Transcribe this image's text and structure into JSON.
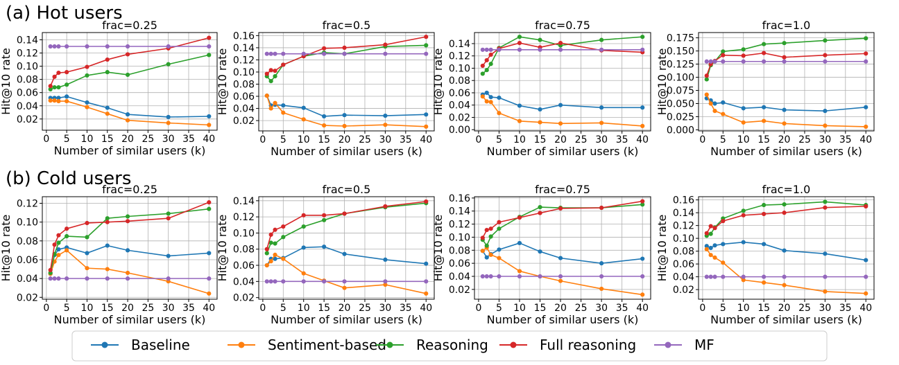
{
  "sections": [
    {
      "title": "(a) Hot users"
    },
    {
      "title": "(b) Cold users"
    }
  ],
  "series_colors": {
    "Baseline": "#1f77b4",
    "Sentiment-based": "#ff7f0e",
    "Reasoning": "#2ca02c",
    "Full reasoning": "#d62728",
    "MF": "#9467bd"
  },
  "legend": {
    "items": [
      {
        "name": "Baseline",
        "color": "#1f77b4"
      },
      {
        "name": "Sentiment-based",
        "color": "#ff7f0e"
      },
      {
        "name": "Reasoning",
        "color": "#2ca02c"
      },
      {
        "name": "Full reasoning",
        "color": "#d62728"
      },
      {
        "name": "MF",
        "color": "#9467bd"
      }
    ]
  },
  "chart_data": [
    {
      "type": "line",
      "group": "hot",
      "title": "frac=0.25",
      "xlabel": "Number of similar users (k)",
      "ylabel": "Hit@10 rate",
      "x": [
        1,
        2,
        3,
        5,
        10,
        15,
        20,
        30,
        40
      ],
      "xlim": [
        -1,
        42
      ],
      "xticks": [
        0,
        5,
        10,
        15,
        20,
        25,
        30,
        35,
        40
      ],
      "ylim": [
        0.003,
        0.151
      ],
      "yticks": [
        0.02,
        0.04,
        0.06,
        0.08,
        0.1,
        0.12,
        0.14
      ],
      "ytick_labels": [
        "0.02",
        "0.04",
        "0.06",
        "0.08",
        "0.10",
        "0.12",
        "0.14"
      ],
      "series": [
        {
          "name": "Baseline",
          "values": [
            0.052,
            0.052,
            0.052,
            0.054,
            0.045,
            0.037,
            0.027,
            0.023,
            0.024
          ]
        },
        {
          "name": "Sentiment-based",
          "values": [
            0.048,
            0.048,
            0.047,
            0.047,
            0.038,
            0.028,
            0.018,
            0.014,
            0.011
          ]
        },
        {
          "name": "Reasoning",
          "values": [
            0.065,
            0.068,
            0.068,
            0.072,
            0.086,
            0.091,
            0.087,
            0.103,
            0.117
          ]
        },
        {
          "name": "Full reasoning",
          "values": [
            0.07,
            0.084,
            0.09,
            0.091,
            0.099,
            0.11,
            0.118,
            0.127,
            0.143
          ]
        },
        {
          "name": "MF",
          "values": [
            0.13,
            0.13,
            0.13,
            0.13,
            0.13,
            0.13,
            0.13,
            0.13,
            0.13
          ]
        }
      ]
    },
    {
      "type": "line",
      "group": "hot",
      "title": "frac=0.5",
      "xlabel": "Number of similar users (k)",
      "ylabel": "Hit@10 rate",
      "x": [
        1,
        2,
        3,
        5,
        10,
        15,
        20,
        30,
        40
      ],
      "xlim": [
        -1,
        42
      ],
      "xticks": [
        0,
        5,
        10,
        15,
        20,
        25,
        30,
        35,
        40
      ],
      "ylim": [
        0.003,
        0.165
      ],
      "yticks": [
        0.02,
        0.04,
        0.06,
        0.08,
        0.1,
        0.12,
        0.14,
        0.16
      ],
      "ytick_labels": [
        "0.02",
        "0.04",
        "0.06",
        "0.08",
        "0.10",
        "0.12",
        "0.14",
        "0.16"
      ],
      "series": [
        {
          "name": "Baseline",
          "values": [
            0.061,
            0.045,
            0.046,
            0.045,
            0.041,
            0.027,
            0.029,
            0.028,
            0.03
          ]
        },
        {
          "name": "Sentiment-based",
          "values": [
            0.061,
            0.04,
            0.049,
            0.033,
            0.022,
            0.012,
            0.011,
            0.013,
            0.01
          ]
        },
        {
          "name": "Reasoning",
          "values": [
            0.093,
            0.085,
            0.093,
            0.112,
            0.126,
            0.132,
            0.13,
            0.142,
            0.144
          ]
        },
        {
          "name": "Full reasoning",
          "values": [
            0.097,
            0.103,
            0.102,
            0.112,
            0.126,
            0.139,
            0.14,
            0.145,
            0.158
          ]
        },
        {
          "name": "MF",
          "values": [
            0.13,
            0.13,
            0.13,
            0.13,
            0.13,
            0.13,
            0.13,
            0.13,
            0.13
          ]
        }
      ]
    },
    {
      "type": "line",
      "group": "hot",
      "title": "frac=0.75",
      "xlabel": "Number of similar users (k)",
      "ylabel": "Hit@10 rate",
      "x": [
        1,
        2,
        3,
        5,
        10,
        15,
        20,
        30,
        40
      ],
      "xlim": [
        -1,
        42
      ],
      "xticks": [
        0,
        5,
        10,
        15,
        20,
        25,
        30,
        35,
        40
      ],
      "ylim": [
        -0.002,
        0.158
      ],
      "yticks": [
        0.0,
        0.02,
        0.04,
        0.06,
        0.08,
        0.1,
        0.12,
        0.14
      ],
      "ytick_labels": [
        "0.00",
        "0.02",
        "0.04",
        "0.06",
        "0.08",
        "0.10",
        "0.12",
        "0.14"
      ],
      "series": [
        {
          "name": "Baseline",
          "values": [
            0.057,
            0.06,
            0.053,
            0.052,
            0.039,
            0.033,
            0.04,
            0.036,
            0.036
          ]
        },
        {
          "name": "Sentiment-based",
          "values": [
            0.054,
            0.046,
            0.045,
            0.027,
            0.014,
            0.012,
            0.01,
            0.011,
            0.006
          ]
        },
        {
          "name": "Reasoning",
          "values": [
            0.091,
            0.097,
            0.107,
            0.133,
            0.151,
            0.146,
            0.137,
            0.146,
            0.151
          ]
        },
        {
          "name": "Full reasoning",
          "values": [
            0.104,
            0.113,
            0.122,
            0.132,
            0.141,
            0.134,
            0.141,
            0.129,
            0.126
          ]
        },
        {
          "name": "MF",
          "values": [
            0.13,
            0.13,
            0.13,
            0.13,
            0.13,
            0.13,
            0.13,
            0.13,
            0.13
          ]
        }
      ]
    },
    {
      "type": "line",
      "group": "hot",
      "title": "frac=1.0",
      "xlabel": "Number of similar users (k)",
      "ylabel": "Hit@10 rate",
      "x": [
        1,
        2,
        3,
        5,
        10,
        15,
        20,
        30,
        40
      ],
      "xlim": [
        -1,
        42
      ],
      "xticks": [
        0,
        5,
        10,
        15,
        20,
        25,
        30,
        35,
        40
      ],
      "ylim": [
        -0.002,
        0.185
      ],
      "yticks": [
        0.0,
        0.025,
        0.05,
        0.075,
        0.1,
        0.125,
        0.15,
        0.175
      ],
      "ytick_labels": [
        "0.000",
        "0.025",
        "0.050",
        "0.075",
        "0.100",
        "0.125",
        "0.150",
        "0.175"
      ],
      "series": [
        {
          "name": "Baseline",
          "values": [
            0.06,
            0.056,
            0.05,
            0.052,
            0.041,
            0.043,
            0.038,
            0.036,
            0.043
          ]
        },
        {
          "name": "Sentiment-based",
          "values": [
            0.067,
            0.05,
            0.036,
            0.03,
            0.014,
            0.017,
            0.012,
            0.008,
            0.006
          ]
        },
        {
          "name": "Reasoning",
          "values": [
            0.096,
            0.123,
            0.13,
            0.149,
            0.153,
            0.163,
            0.165,
            0.17,
            0.174
          ]
        },
        {
          "name": "Full reasoning",
          "values": [
            0.103,
            0.125,
            0.131,
            0.142,
            0.141,
            0.146,
            0.138,
            0.142,
            0.145
          ]
        },
        {
          "name": "MF",
          "values": [
            0.13,
            0.13,
            0.13,
            0.13,
            0.13,
            0.13,
            0.13,
            0.13,
            0.13
          ]
        }
      ]
    },
    {
      "type": "line",
      "group": "cold",
      "title": "frac=0.25",
      "xlabel": "Number of similar users (k)",
      "ylabel": "Hit@10 rate",
      "x": [
        1,
        2,
        3,
        5,
        10,
        15,
        20,
        30,
        40
      ],
      "xlim": [
        -1,
        42
      ],
      "xticks": [
        0,
        5,
        10,
        15,
        20,
        25,
        30,
        35,
        40
      ],
      "ylim": [
        0.018,
        0.127
      ],
      "yticks": [
        0.02,
        0.04,
        0.06,
        0.08,
        0.1,
        0.12
      ],
      "ytick_labels": [
        "0.02",
        "0.04",
        "0.06",
        "0.08",
        "0.10",
        "0.12"
      ],
      "series": [
        {
          "name": "Baseline",
          "values": [
            0.045,
            0.065,
            0.071,
            0.073,
            0.067,
            0.075,
            0.07,
            0.064,
            0.067
          ]
        },
        {
          "name": "Sentiment-based",
          "values": [
            0.045,
            0.058,
            0.065,
            0.07,
            0.051,
            0.05,
            0.046,
            0.037,
            0.024
          ]
        },
        {
          "name": "Reasoning",
          "values": [
            0.046,
            0.066,
            0.078,
            0.085,
            0.084,
            0.104,
            0.106,
            0.109,
            0.114
          ]
        },
        {
          "name": "Full reasoning",
          "values": [
            0.049,
            0.076,
            0.086,
            0.093,
            0.099,
            0.1,
            0.101,
            0.104,
            0.121
          ]
        },
        {
          "name": "MF",
          "values": [
            0.04,
            0.04,
            0.04,
            0.04,
            0.04,
            0.04,
            0.04,
            0.04,
            0.04
          ]
        }
      ]
    },
    {
      "type": "line",
      "group": "cold",
      "title": "frac=0.5",
      "xlabel": "Number of similar users (k)",
      "ylabel": "Hit@10 rate",
      "x": [
        1,
        2,
        3,
        5,
        10,
        15,
        20,
        30,
        40
      ],
      "xlim": [
        -1,
        42
      ],
      "xticks": [
        0,
        5,
        10,
        15,
        20,
        25,
        30,
        35,
        40
      ],
      "ylim": [
        0.018,
        0.145
      ],
      "yticks": [
        0.02,
        0.04,
        0.06,
        0.08,
        0.1,
        0.12,
        0.14
      ],
      "ytick_labels": [
        "0.02",
        "0.04",
        "0.06",
        "0.08",
        "0.10",
        "0.12",
        "0.14"
      ],
      "series": [
        {
          "name": "Baseline",
          "values": [
            0.06,
            0.068,
            0.068,
            0.069,
            0.082,
            0.083,
            0.074,
            0.067,
            0.062
          ]
        },
        {
          "name": "Sentiment-based",
          "values": [
            0.06,
            0.065,
            0.073,
            0.068,
            0.05,
            0.041,
            0.032,
            0.036,
            0.025
          ]
        },
        {
          "name": "Reasoning",
          "values": [
            0.075,
            0.088,
            0.087,
            0.095,
            0.108,
            0.116,
            0.124,
            0.132,
            0.137
          ]
        },
        {
          "name": "Full reasoning",
          "values": [
            0.08,
            0.098,
            0.104,
            0.108,
            0.122,
            0.122,
            0.124,
            0.133,
            0.139
          ]
        },
        {
          "name": "MF",
          "values": [
            0.04,
            0.04,
            0.04,
            0.04,
            0.04,
            0.04,
            0.04,
            0.04,
            0.04
          ]
        }
      ]
    },
    {
      "type": "line",
      "group": "cold",
      "title": "frac=0.75",
      "xlabel": "Number of similar users (k)",
      "ylabel": "Hit@10 rate",
      "x": [
        1,
        2,
        3,
        5,
        10,
        15,
        20,
        30,
        40
      ],
      "xlim": [
        -1,
        42
      ],
      "xticks": [
        0,
        5,
        10,
        15,
        20,
        25,
        30,
        35,
        40
      ],
      "ylim": [
        0.005,
        0.162
      ],
      "yticks": [
        0.02,
        0.04,
        0.06,
        0.08,
        0.1,
        0.12,
        0.14,
        0.16
      ],
      "ytick_labels": [
        "0.02",
        "0.04",
        "0.06",
        "0.08",
        "0.10",
        "0.12",
        "0.14",
        "0.16"
      ],
      "series": [
        {
          "name": "Baseline",
          "values": [
            0.079,
            0.069,
            0.074,
            0.081,
            0.091,
            0.078,
            0.068,
            0.06,
            0.067
          ]
        },
        {
          "name": "Sentiment-based",
          "values": [
            0.079,
            0.084,
            0.073,
            0.068,
            0.048,
            0.04,
            0.033,
            0.021,
            0.012
          ]
        },
        {
          "name": "Reasoning",
          "values": [
            0.096,
            0.087,
            0.101,
            0.113,
            0.131,
            0.146,
            0.145,
            0.145,
            0.15
          ]
        },
        {
          "name": "Full reasoning",
          "values": [
            0.099,
            0.111,
            0.113,
            0.123,
            0.13,
            0.137,
            0.144,
            0.145,
            0.155
          ]
        },
        {
          "name": "MF",
          "values": [
            0.04,
            0.04,
            0.04,
            0.04,
            0.04,
            0.04,
            0.04,
            0.04,
            0.04
          ]
        }
      ]
    },
    {
      "type": "line",
      "group": "cold",
      "title": "frac=1.0",
      "xlabel": "Number of similar users (k)",
      "ylabel": "Hit@10 rate",
      "x": [
        1,
        2,
        3,
        5,
        10,
        15,
        20,
        30,
        40
      ],
      "xlim": [
        -1,
        42
      ],
      "xticks": [
        0,
        5,
        10,
        15,
        20,
        25,
        30,
        35,
        40
      ],
      "ylim": [
        0.005,
        0.165
      ],
      "yticks": [
        0.02,
        0.04,
        0.06,
        0.08,
        0.1,
        0.12,
        0.14,
        0.16
      ],
      "ytick_labels": [
        "0.02",
        "0.04",
        "0.06",
        "0.08",
        "0.10",
        "0.12",
        "0.14",
        "0.16"
      ],
      "series": [
        {
          "name": "Baseline",
          "values": [
            0.088,
            0.085,
            0.089,
            0.091,
            0.094,
            0.091,
            0.081,
            0.076,
            0.066
          ]
        },
        {
          "name": "Sentiment-based",
          "values": [
            0.083,
            0.074,
            0.07,
            0.062,
            0.035,
            0.031,
            0.027,
            0.017,
            0.014
          ]
        },
        {
          "name": "Reasoning",
          "values": [
            0.104,
            0.107,
            0.117,
            0.131,
            0.143,
            0.152,
            0.153,
            0.157,
            0.152
          ]
        },
        {
          "name": "Full reasoning",
          "values": [
            0.108,
            0.119,
            0.116,
            0.127,
            0.136,
            0.138,
            0.14,
            0.148,
            0.15
          ]
        },
        {
          "name": "MF",
          "values": [
            0.04,
            0.04,
            0.04,
            0.04,
            0.04,
            0.04,
            0.04,
            0.04,
            0.04
          ]
        }
      ]
    }
  ]
}
